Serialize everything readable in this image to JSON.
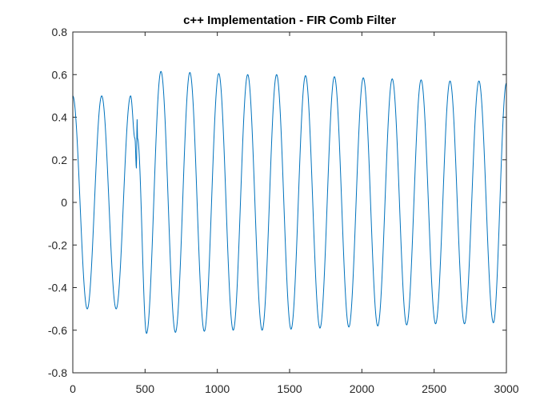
{
  "chart_data": {
    "type": "line",
    "title": "c++ Implementation - FIR Comb Filter",
    "xlabel": "",
    "ylabel": "",
    "xlim": [
      0,
      3000
    ],
    "ylim": [
      -0.8,
      0.8
    ],
    "x_ticks": [
      0,
      500,
      1000,
      1500,
      2000,
      2500,
      3000
    ],
    "x_tick_labels": [
      "0",
      "500",
      "1000",
      "1500",
      "2000",
      "2500",
      "3000"
    ],
    "y_ticks": [
      0.8,
      0.6,
      0.4,
      0.2,
      0,
      -0.2,
      -0.4,
      -0.6,
      -0.8
    ],
    "y_tick_labels": [
      "0.8",
      "0.6",
      "0.4",
      "0.2",
      "0",
      "-0.2",
      "-0.4",
      "-0.6",
      "-0.8"
    ],
    "grid": false,
    "series": [
      {
        "color": "#0072bd",
        "points": [
          [
            0,
            0.5
          ],
          [
            100,
            -0.5
          ],
          [
            200,
            0.5
          ],
          [
            300,
            -0.5
          ],
          [
            400,
            0.5
          ],
          [
            430,
            0.3
          ],
          [
            440,
            0.16
          ],
          [
            445,
            0.39
          ],
          [
            448,
            0.3
          ],
          [
            510,
            -0.615
          ],
          [
            610,
            0.615
          ],
          [
            710,
            -0.61
          ],
          [
            810,
            0.61
          ],
          [
            910,
            -0.605
          ],
          [
            1010,
            0.605
          ],
          [
            1110,
            -0.6
          ],
          [
            1210,
            0.6
          ],
          [
            1310,
            -0.6
          ],
          [
            1410,
            0.6
          ],
          [
            1510,
            -0.595
          ],
          [
            1610,
            0.595
          ],
          [
            1710,
            -0.59
          ],
          [
            1810,
            0.59
          ],
          [
            1910,
            -0.585
          ],
          [
            2010,
            0.585
          ],
          [
            2110,
            -0.58
          ],
          [
            2210,
            0.58
          ],
          [
            2310,
            -0.575
          ],
          [
            2410,
            0.575
          ],
          [
            2510,
            -0.57
          ],
          [
            2610,
            0.57
          ],
          [
            2710,
            -0.57
          ],
          [
            2810,
            0.57
          ],
          [
            2910,
            -0.565
          ],
          [
            3000,
            0.56
          ]
        ]
      }
    ]
  }
}
